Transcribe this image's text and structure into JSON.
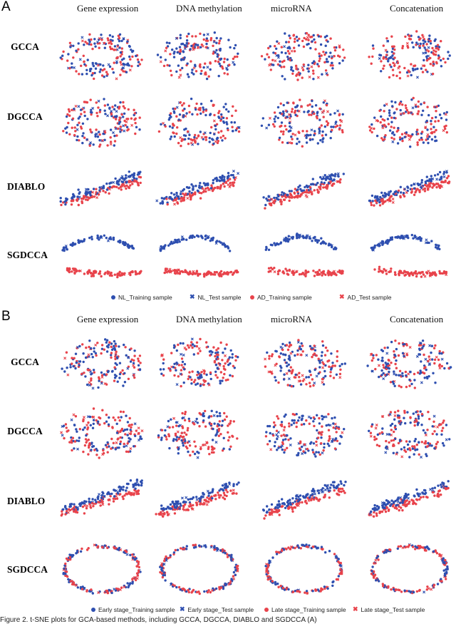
{
  "figure": {
    "caption": "Figure 2. t-SNE plots for GCA-based methods, including GCCA, DGCCA, DIABLO and SGDCCA (A)"
  },
  "colors": {
    "blue": "#2e4fb0",
    "red": "#e8434b"
  },
  "panels": [
    {
      "letter": "A",
      "columns": [
        "Gene expression",
        "DNA methylation",
        "microRNA",
        "Concatenation"
      ],
      "rows": [
        "GCCA",
        "DGCCA",
        "DIABLO",
        "SGDCCA"
      ],
      "legend": [
        {
          "label": "NL_Training sample",
          "marker": "circle",
          "color": "blue"
        },
        {
          "label": "NL_Test sample",
          "marker": "x",
          "color": "blue"
        },
        {
          "label": "AD_Training sample",
          "marker": "circle",
          "color": "red"
        },
        {
          "label": "AD_Test sample",
          "marker": "x",
          "color": "red"
        }
      ]
    },
    {
      "letter": "B",
      "columns": [
        "Gene expression",
        "DNA methylation",
        "microRNA",
        "Concatenation"
      ],
      "rows": [
        "GCCA",
        "DGCCA",
        "DIABLO",
        "SGDCCA"
      ],
      "legend": [
        {
          "label": "Early stage_Training sample",
          "marker": "circle",
          "color": "blue"
        },
        {
          "label": "Early stage_Test sample",
          "marker": "x",
          "color": "blue"
        },
        {
          "label": "Late stage_Training sample",
          "marker": "circle",
          "color": "red"
        },
        {
          "label": "Late stage_Test sample",
          "marker": "x",
          "color": "red"
        }
      ]
    }
  ],
  "chart_data": [
    {
      "type": "scatter",
      "panel": "A",
      "description": "t-SNE embeddings (4 methods x 4 views); axes unlabeled",
      "series": [
        {
          "name": "NL_Training sample"
        },
        {
          "name": "NL_Test sample"
        },
        {
          "name": "AD_Training sample"
        },
        {
          "name": "AD_Test sample"
        }
      ],
      "grid": false,
      "legend": "bottom"
    },
    {
      "type": "scatter",
      "panel": "B",
      "description": "t-SNE embeddings (4 methods x 4 views); axes unlabeled",
      "series": [
        {
          "name": "Early stage_Training sample"
        },
        {
          "name": "Early stage_Test sample"
        },
        {
          "name": "Late stage_Training sample"
        },
        {
          "name": "Late stage_Test sample"
        }
      ],
      "grid": false,
      "legend": "bottom"
    }
  ]
}
